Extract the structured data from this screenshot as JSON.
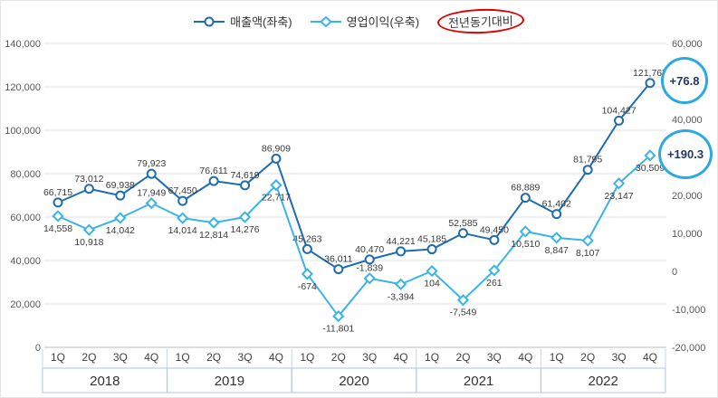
{
  "legend": {
    "series1": "매출액(좌축)",
    "series2": "영업이익(우축)",
    "yoy": "전년동기대비"
  },
  "annotations": [
    {
      "text": "+76.8"
    },
    {
      "text": "+190.3"
    }
  ],
  "colors": {
    "revenue": "#1f6cb0",
    "profit": "#3ab4e5",
    "annotation_circle": "#2ba9e0",
    "yoy_ellipse": "#e00000",
    "grid": "#e0e0e0"
  },
  "chart_data": {
    "type": "line",
    "title": "",
    "x_categories": [
      "1Q",
      "2Q",
      "3Q",
      "4Q",
      "1Q",
      "2Q",
      "3Q",
      "4Q",
      "1Q",
      "2Q",
      "3Q",
      "4Q",
      "1Q",
      "2Q",
      "3Q",
      "4Q",
      "1Q",
      "2Q",
      "3Q",
      "4Q"
    ],
    "year_groups": [
      "2018",
      "2019",
      "2020",
      "2021",
      "2022"
    ],
    "left_axis": {
      "min": 0,
      "max": 140000,
      "step": 20000
    },
    "right_axis": {
      "min": -20000,
      "max": 60000,
      "ticks": [
        60000,
        40000,
        20000,
        10000,
        0,
        -10000,
        -20000
      ]
    },
    "grid": true,
    "legend_position": "top",
    "series": [
      {
        "name": "매출액(좌축)",
        "axis": "left",
        "color": "#1f6cb0",
        "marker": "circle",
        "values": [
          66715,
          73012,
          69938,
          79923,
          67450,
          76611,
          74619,
          86909,
          45263,
          36011,
          40470,
          44221,
          45185,
          52585,
          49450,
          68889,
          61402,
          81795,
          104427,
          121767
        ],
        "label_positions": [
          "above",
          "above",
          "above",
          "above",
          "above",
          "above",
          "above",
          "above",
          "above",
          "above",
          "above",
          "above",
          "above",
          "above",
          "above",
          "above",
          "above",
          "above",
          "above",
          "above"
        ]
      },
      {
        "name": "영업이익(우축)",
        "axis": "right",
        "color": "#3ab4e5",
        "marker": "diamond",
        "values": [
          14558,
          10918,
          14042,
          17949,
          14014,
          12814,
          14276,
          22717,
          -674,
          -11801,
          -1839,
          -3394,
          104,
          -7549,
          261,
          10510,
          8847,
          8107,
          23147,
          30509
        ],
        "label_positions": [
          "below",
          "below",
          "below",
          "above",
          "below",
          "below",
          "below",
          "below",
          "below",
          "below",
          "above",
          "below",
          "below",
          "below",
          "below",
          "below",
          "below",
          "below",
          "below",
          "below"
        ]
      }
    ]
  }
}
